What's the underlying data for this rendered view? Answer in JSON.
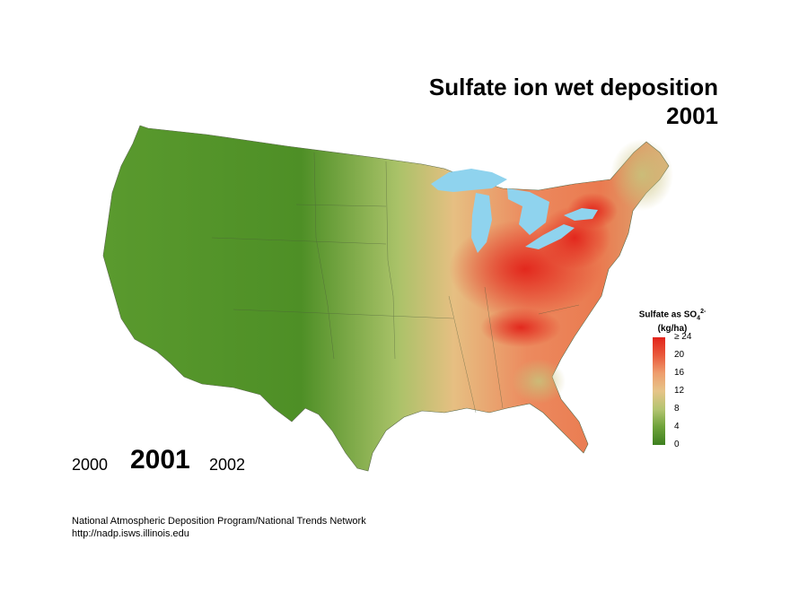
{
  "title": {
    "line1": "Sulfate ion wet deposition",
    "line2": "2001"
  },
  "legend": {
    "title_main": "Sulfate as SO",
    "title_sub": "4",
    "title_sup": "2-",
    "units": "(kg/ha)",
    "ticks": [
      "≥ 24",
      "20",
      "16",
      "12",
      "8",
      "4",
      "0"
    ],
    "colors": {
      "low": "#3d7f1f",
      "mid": "#e6c488",
      "high": "#e2231a"
    }
  },
  "years": {
    "prev": "2000",
    "current": "2001",
    "next": "2002"
  },
  "credit": {
    "line1": "National Atmospheric Deposition Program/National Trends Network",
    "line2": "http://nadp.isws.illinois.edu"
  },
  "map_colors": {
    "water": "#8fd3ee",
    "west": "#4e8f26",
    "plains": "#9fbe5e",
    "east": "#ea7c52",
    "hotspot": "#e2231a"
  }
}
